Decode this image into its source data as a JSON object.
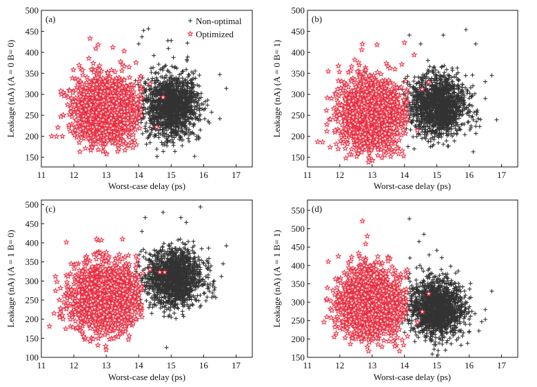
{
  "chart_data": [
    {
      "type": "scatter",
      "panel_label": "(a)",
      "xlabel": "Worst-case delay (ps)",
      "ylabel": "Leakage (nA) (A = 0 B= 0)",
      "xlim": [
        11,
        17.5
      ],
      "ylim": [
        127,
        500
      ],
      "xticks": [
        "11",
        "12",
        "13",
        "14",
        "15",
        "16",
        "17"
      ],
      "yticks": [
        "150",
        "200",
        "250",
        "300",
        "350",
        "400",
        "450",
        "500"
      ],
      "legend": {
        "position": "top-right",
        "entries": [
          "Non-optimal",
          "Optimized"
        ]
      },
      "series": [
        {
          "name": "Non-optimal",
          "marker": "plus",
          "color": "#333333",
          "approx_count": 1500,
          "x_mean": 15.0,
          "x_sd": 0.42,
          "y_mean": 272,
          "y_sd": 36,
          "outliers": [
            [
              14.3,
              456
            ],
            [
              14.15,
              452
            ],
            [
              14.9,
              428
            ],
            [
              15.0,
              428
            ],
            [
              15.5,
              422
            ],
            [
              16.5,
              347
            ],
            [
              16.7,
              314
            ],
            [
              16.5,
              242
            ],
            [
              14.35,
              185
            ],
            [
              14.8,
              184
            ],
            [
              15.55,
              188
            ],
            [
              14.0,
              420
            ],
            [
              14.1,
              437
            ]
          ]
        },
        {
          "name": "Optimized",
          "marker": "star",
          "color": "#e8283c",
          "approx_count": 1500,
          "x_mean": 12.95,
          "x_sd": 0.48,
          "y_mean": 265,
          "y_sd": 38,
          "outliers": [
            [
              12.5,
              433
            ],
            [
              12.75,
              418
            ],
            [
              13.2,
              412
            ],
            [
              13.55,
              403
            ],
            [
              11.6,
              308
            ],
            [
              11.7,
              296
            ],
            [
              11.6,
              247
            ],
            [
              11.65,
              200
            ],
            [
              13.35,
              164
            ],
            [
              12.75,
              168
            ],
            [
              14.75,
              293
            ],
            [
              14.55,
              222
            ],
            [
              14.35,
              325
            ]
          ]
        }
      ]
    },
    {
      "type": "scatter",
      "panel_label": "(b)",
      "xlabel": "Worst-case delay (ps)",
      "ylabel": "Leakage (nA) (A = 0 B= 1)",
      "xlim": [
        11,
        17.5
      ],
      "ylim": [
        127,
        500
      ],
      "xticks": [
        "11",
        "12",
        "13",
        "14",
        "15",
        "16",
        "17"
      ],
      "yticks": [
        "150",
        "200",
        "250",
        "300",
        "350",
        "400",
        "450",
        "500"
      ],
      "series": [
        {
          "name": "Non-optimal",
          "marker": "plus",
          "color": "#333333",
          "approx_count": 1500,
          "x_mean": 15.05,
          "x_sd": 0.42,
          "y_mean": 272,
          "y_sd": 36,
          "outliers": [
            [
              15.9,
              454
            ],
            [
              14.15,
              441
            ],
            [
              15.2,
              441
            ],
            [
              16.2,
              420
            ],
            [
              16.7,
              345
            ],
            [
              16.5,
              330
            ],
            [
              16.5,
              290
            ],
            [
              16.35,
              240
            ],
            [
              14.3,
              170
            ],
            [
              14.8,
              175
            ],
            [
              15.2,
              181
            ],
            [
              14.5,
              420
            ]
          ]
        },
        {
          "name": "Optimized",
          "marker": "star",
          "color": "#e8283c",
          "approx_count": 1500,
          "x_mean": 12.95,
          "x_sd": 0.48,
          "y_mean": 255,
          "y_sd": 40,
          "outliers": [
            [
              12.7,
              420
            ],
            [
              13.15,
              418
            ],
            [
              14.0,
              423
            ],
            [
              14.3,
              394
            ],
            [
              11.6,
              228
            ],
            [
              11.6,
              212
            ],
            [
              11.7,
              174
            ],
            [
              11.95,
              170
            ],
            [
              12.3,
              157
            ],
            [
              14.75,
              329
            ],
            [
              14.55,
              312
            ],
            [
              14.4,
              214
            ]
          ]
        }
      ]
    },
    {
      "type": "scatter",
      "panel_label": "(c)",
      "xlabel": "Worst-case delay (ps)",
      "ylabel": "Leakage (nA) (A = 1 B= 0)",
      "xlim": [
        11,
        17.5
      ],
      "ylim": [
        100,
        512
      ],
      "xticks": [
        "11",
        "12",
        "13",
        "14",
        "15",
        "16",
        "17"
      ],
      "yticks": [
        "100",
        "150",
        "200",
        "250",
        "300",
        "350",
        "400",
        "450",
        "500"
      ],
      "series": [
        {
          "name": "Non-optimal",
          "marker": "plus",
          "color": "#333333",
          "approx_count": 1500,
          "x_mean": 15.1,
          "x_sd": 0.42,
          "y_mean": 308,
          "y_sd": 38,
          "outliers": [
            [
              15.9,
              494
            ],
            [
              14.2,
              466
            ],
            [
              14.75,
              480
            ],
            [
              15.3,
              466
            ],
            [
              16.7,
              392
            ],
            [
              16.6,
              345
            ],
            [
              16.55,
              312
            ],
            [
              14.4,
              215
            ],
            [
              15.0,
              205
            ],
            [
              14.1,
              430
            ]
          ]
        },
        {
          "name": "Optimized",
          "marker": "star",
          "color": "#e8283c",
          "approx_count": 1500,
          "x_mean": 12.95,
          "x_sd": 0.5,
          "y_mean": 258,
          "y_sd": 45,
          "outliers": [
            [
              12.7,
              410
            ],
            [
              12.85,
              407
            ],
            [
              13.5,
              410
            ],
            [
              11.7,
              260
            ],
            [
              11.65,
              210
            ],
            [
              11.75,
              175
            ],
            [
              12.3,
              155
            ],
            [
              14.65,
              323
            ],
            [
              14.8,
              323
            ],
            [
              14.35,
              330
            ]
          ]
        }
      ]
    },
    {
      "type": "scatter",
      "panel_label": "(d)",
      "xlabel": "Worst-case delay (ps)",
      "ylabel": "Leakage (nA) (A = 1 B= 1)",
      "xlim": [
        11,
        17.5
      ],
      "ylim": [
        150,
        578
      ],
      "xticks": [
        "11",
        "12",
        "13",
        "14",
        "15",
        "16",
        "17"
      ],
      "yticks": [
        "150",
        "200",
        "250",
        "300",
        "350",
        "400",
        "450",
        "500",
        "550"
      ],
      "series": [
        {
          "name": "Non-optimal",
          "marker": "plus",
          "color": "#333333",
          "approx_count": 1500,
          "x_mean": 15.0,
          "x_sd": 0.42,
          "y_mean": 285,
          "y_sd": 38,
          "outliers": [
            [
              14.15,
              527
            ],
            [
              14.6,
              485
            ],
            [
              14.45,
              465
            ],
            [
              15.0,
              441
            ],
            [
              16.7,
              330
            ],
            [
              16.5,
              280
            ],
            [
              16.5,
              253
            ],
            [
              15.3,
              190
            ],
            [
              15.75,
              183
            ],
            [
              16.3,
              222
            ]
          ]
        },
        {
          "name": "Optimized",
          "marker": "star",
          "color": "#e8283c",
          "approx_count": 1500,
          "x_mean": 12.95,
          "x_sd": 0.48,
          "y_mean": 298,
          "y_sd": 45,
          "outliers": [
            [
              12.7,
              521
            ],
            [
              12.85,
              480
            ],
            [
              12.8,
              459
            ],
            [
              13.5,
              420
            ],
            [
              11.6,
              309
            ],
            [
              11.6,
              260
            ],
            [
              11.85,
              232
            ],
            [
              13.7,
              180
            ],
            [
              14.75,
              323
            ],
            [
              14.55,
              274
            ],
            [
              14.4,
              245
            ]
          ]
        }
      ]
    }
  ]
}
